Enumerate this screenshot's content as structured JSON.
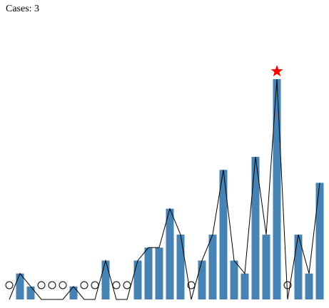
{
  "chart_data": {
    "type": "bar",
    "title": "Cases: 3",
    "values": [
      0,
      2,
      1,
      0,
      0,
      0,
      1,
      0,
      0,
      3,
      0,
      0,
      3,
      4,
      4,
      7,
      5,
      0,
      3,
      5,
      10,
      3,
      2,
      11,
      5,
      17,
      0,
      5,
      2,
      9
    ],
    "color": "#4682b4",
    "line_color": "#000000",
    "highlight_color": "#ff0000",
    "ylim": [
      0,
      17
    ]
  }
}
